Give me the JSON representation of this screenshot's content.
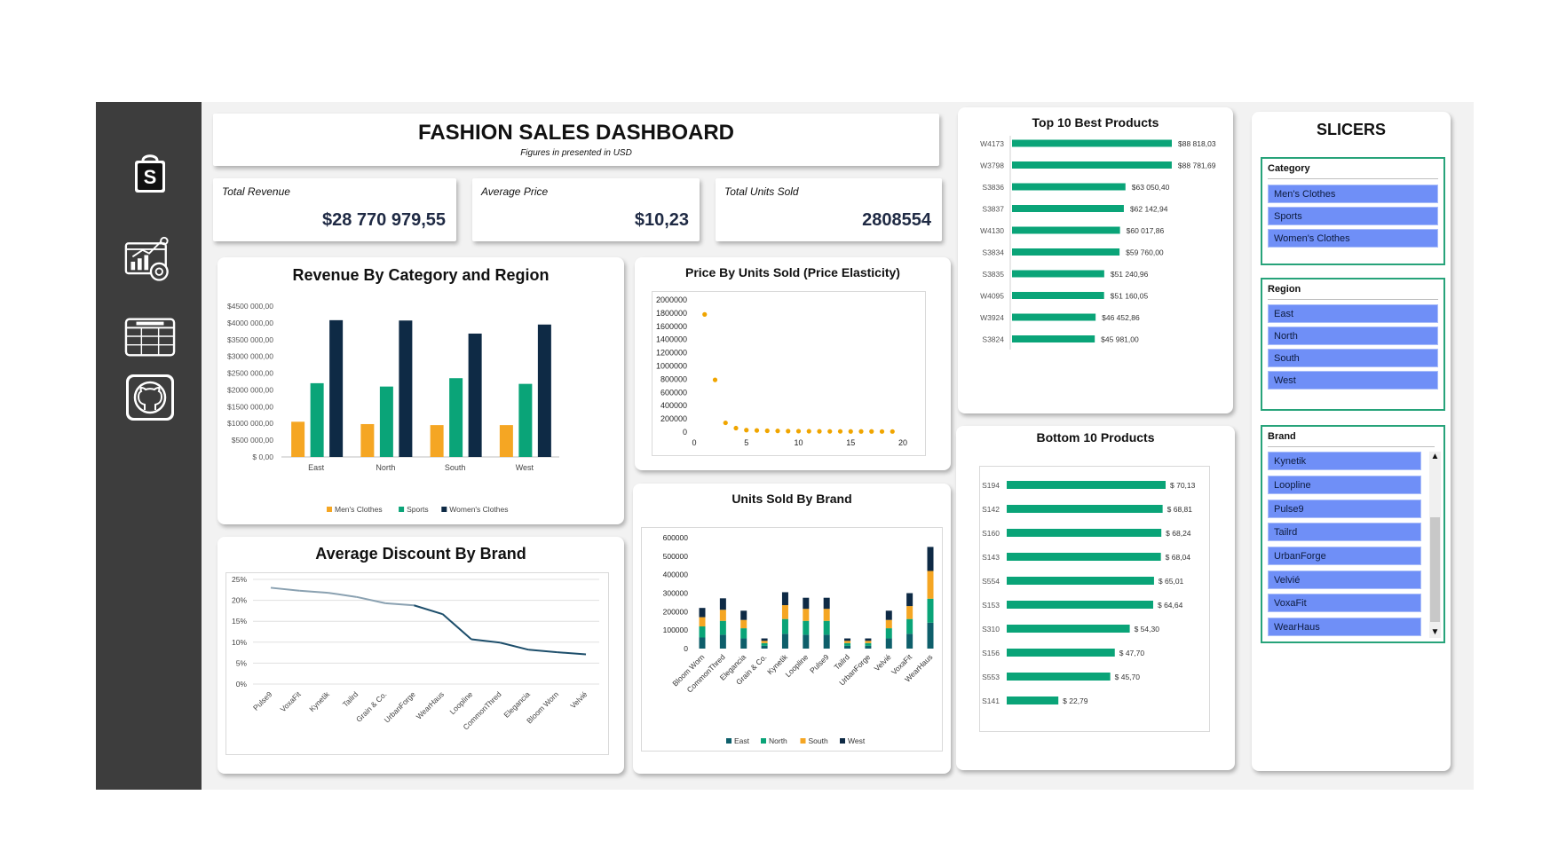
{
  "header": {
    "title": "FASHION SALES DASHBOARD",
    "subtitle": "Figures in presented in USD"
  },
  "sidebar": {
    "logo_letter": "S",
    "icons": [
      "shopping-bag-icon",
      "analytics-icon",
      "spreadsheet-icon",
      "github-icon"
    ]
  },
  "kpis": [
    {
      "label": "Total Revenue",
      "value": "$28 770 979,55"
    },
    {
      "label": "Average Price",
      "value": "$10,23"
    },
    {
      "label": "Total Units Sold",
      "value": "2808554"
    }
  ],
  "colors": {
    "mens": "#f5a623",
    "sports": "#0aa478",
    "womens": "#0e2a45",
    "east": "#0e5f6b",
    "north": "#0aa478",
    "south": "#f5a623",
    "west": "#0e2a45",
    "line_start": "#8aa1b1",
    "line_end": "#1d4e6b",
    "scatter": "#f0a500",
    "bar_green": "#0aa478",
    "slicer": "#6f8ff7",
    "slicer_border": "#27a37a"
  },
  "chart_data": [
    {
      "type": "bar",
      "title": "Revenue By Category and Region",
      "categories": [
        "East",
        "North",
        "South",
        "West"
      ],
      "series": [
        {
          "name": "Men's Clothes",
          "values": [
            1050000,
            980000,
            950000,
            950000
          ]
        },
        {
          "name": "Sports",
          "values": [
            2200000,
            2100000,
            2350000,
            2180000
          ]
        },
        {
          "name": "Women's Clothes",
          "values": [
            4080000,
            4070000,
            3680000,
            3950000
          ]
        }
      ],
      "ylim": [
        0,
        4500000
      ],
      "yticks": [
        "$ 0,00",
        "$500 000,00",
        "$1000 000,00",
        "$1500 000,00",
        "$2000 000,00",
        "$2500 000,00",
        "$3000 000,00",
        "$3500 000,00",
        "$4000 000,00",
        "$4500 000,00"
      ],
      "legend": "bottom"
    },
    {
      "type": "scatter",
      "title": "Price By Units Sold (Price Elasticity)",
      "x": [
        1,
        2,
        3,
        4,
        5,
        6,
        7,
        8,
        9,
        10,
        11,
        12,
        13,
        14,
        15,
        16,
        17,
        18,
        19
      ],
      "y": [
        1780000,
        790000,
        140000,
        60000,
        30000,
        25000,
        20000,
        18000,
        15000,
        14000,
        13000,
        12000,
        11000,
        11000,
        10000,
        10000,
        10000,
        9000,
        9000
      ],
      "xlim": [
        0,
        20
      ],
      "xticks": [
        "0",
        "5",
        "10",
        "15",
        "20"
      ],
      "ylim": [
        0,
        2000000
      ],
      "yticks": [
        "0",
        "200000",
        "400000",
        "600000",
        "800000",
        "1000000",
        "1200000",
        "1400000",
        "1600000",
        "1800000",
        "2000000"
      ]
    },
    {
      "type": "line",
      "title": "Average Discount By Brand",
      "categories": [
        "Pulse9",
        "VoxaFit",
        "Kynetik",
        "Tailrd",
        "Grain & Co.",
        "UrbanForge",
        "WearHaus",
        "Loopline",
        "CommonThred",
        "Elegancia",
        "Bloom Worn",
        "Velvié"
      ],
      "values": [
        23.0,
        22.3,
        21.8,
        20.8,
        19.3,
        18.8,
        16.7,
        10.7,
        9.9,
        8.2,
        7.6,
        7.1
      ],
      "ylim": [
        0,
        25
      ],
      "yticks": [
        "0%",
        "5%",
        "10%",
        "15%",
        "20%",
        "25%"
      ]
    },
    {
      "type": "bar",
      "stacked": true,
      "title": "Units Sold By Brand",
      "categories": [
        "Bloom Worn",
        "CommonThred",
        "Elegancia",
        "Grain & Co.",
        "Kynetik",
        "Loopline",
        "Pulse9",
        "Tailrd",
        "UrbanForge",
        "Velvié",
        "VoxaFit",
        "WearHaus"
      ],
      "series": [
        {
          "name": "East",
          "values": [
            60000,
            75000,
            55000,
            15000,
            80000,
            75000,
            75000,
            15000,
            15000,
            55000,
            80000,
            140000
          ]
        },
        {
          "name": "North",
          "values": [
            60000,
            75000,
            55000,
            15000,
            80000,
            75000,
            75000,
            15000,
            15000,
            55000,
            80000,
            130000
          ]
        },
        {
          "name": "South",
          "values": [
            50000,
            60000,
            45000,
            12000,
            75000,
            65000,
            65000,
            12000,
            12000,
            45000,
            70000,
            150000
          ]
        },
        {
          "name": "West",
          "values": [
            50000,
            62000,
            50000,
            13000,
            70000,
            60000,
            60000,
            13000,
            13000,
            50000,
            70000,
            130000
          ]
        }
      ],
      "ylim": [
        0,
        600000
      ],
      "yticks": [
        "0",
        "100000",
        "200000",
        "300000",
        "400000",
        "500000",
        "600000"
      ],
      "legend": "bottom"
    },
    {
      "type": "bar",
      "orientation": "horizontal",
      "title": "Top 10 Best Products",
      "categories": [
        "W4173",
        "W3798",
        "S3836",
        "S3837",
        "W4130",
        "S3834",
        "S3835",
        "W4095",
        "W3924",
        "S3824"
      ],
      "values": [
        88818.03,
        88781.69,
        63050.4,
        62142.94,
        60017.86,
        59760.0,
        51240.96,
        51160.05,
        46452.86,
        45981.0
      ],
      "labels": [
        "$88 818,03",
        "$88 781,69",
        "$63 050,40",
        "$62 142,94",
        "$60 017,86",
        "$59 760,00",
        "$51 240,96",
        "$51 160,05",
        "$46 452,86",
        "$45 981,00"
      ]
    },
    {
      "type": "bar",
      "orientation": "horizontal",
      "title": "Bottom 10 Products",
      "categories": [
        "S194",
        "S142",
        "S160",
        "S143",
        "S554",
        "S153",
        "S310",
        "S156",
        "S553",
        "S141"
      ],
      "values": [
        70.13,
        68.81,
        68.24,
        68.04,
        65.01,
        64.64,
        54.3,
        47.7,
        45.7,
        22.79
      ],
      "labels": [
        "$ 70,13",
        "$ 68,81",
        "$ 68,24",
        "$ 68,04",
        "$ 65,01",
        "$ 64,64",
        "$ 54,30",
        "$ 47,70",
        "$ 45,70",
        "$ 22,79"
      ]
    }
  ],
  "slicers": {
    "title": "SLICERS",
    "category": {
      "header": "Category",
      "items": [
        "Men's Clothes",
        "Sports",
        "Women's Clothes"
      ]
    },
    "region": {
      "header": "Region",
      "items": [
        "East",
        "North",
        "South",
        "West"
      ]
    },
    "brand": {
      "header": "Brand",
      "items": [
        "Kynetik",
        "Loopline",
        "Pulse9",
        "Tailrd",
        "UrbanForge",
        "Velvié",
        "VoxaFit",
        "WearHaus"
      ]
    }
  }
}
